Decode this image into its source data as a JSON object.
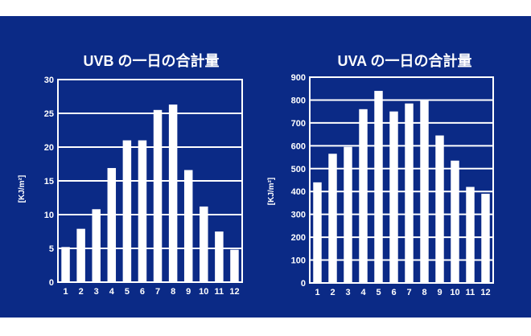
{
  "colors": {
    "background": "#0b2a86",
    "bars": "#ffffff",
    "grid": "#ffffff"
  },
  "chart_data": [
    {
      "type": "bar",
      "title": "UVB の一日の合計量",
      "ylabel": "[KJ/m²]",
      "xlabel": "",
      "categories": [
        "1",
        "2",
        "3",
        "4",
        "5",
        "6",
        "7",
        "8",
        "9",
        "10",
        "11",
        "12"
      ],
      "values": [
        5.2,
        7.9,
        10.8,
        16.9,
        21.0,
        21.0,
        25.5,
        26.3,
        16.6,
        11.2,
        7.5,
        4.8
      ],
      "ylim": [
        0,
        30
      ],
      "yticks": [
        0,
        5,
        10,
        15,
        20,
        25,
        30
      ],
      "grid": true
    },
    {
      "type": "bar",
      "title": "UVA の一日の合計量",
      "ylabel": "[KJ/m²]",
      "xlabel": "",
      "categories": [
        "1",
        "2",
        "3",
        "4",
        "5",
        "6",
        "7",
        "8",
        "9",
        "10",
        "11",
        "12"
      ],
      "values": [
        440,
        565,
        595,
        760,
        840,
        750,
        785,
        800,
        645,
        535,
        420,
        390
      ],
      "ylim": [
        0,
        900
      ],
      "yticks": [
        0,
        100,
        200,
        300,
        400,
        500,
        600,
        700,
        800,
        900
      ],
      "grid": true
    }
  ]
}
